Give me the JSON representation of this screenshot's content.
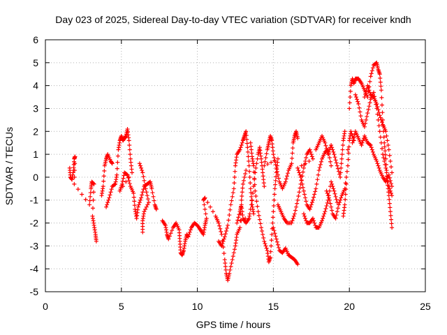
{
  "chart_data": {
    "type": "scatter",
    "title": "Day 023 of 2025, Sidereal Day-to-day VTEC variation (SDTVAR) for receiver kndh",
    "xlabel": "GPS time / hours",
    "ylabel": "SDTVAR / TECUs",
    "xlim": [
      0,
      25
    ],
    "ylim": [
      -5,
      6
    ],
    "x_ticks": [
      "0",
      "5",
      "10",
      "15",
      "20",
      "25"
    ],
    "y_ticks": [
      "-5",
      "-4",
      "-3",
      "-2",
      "-1",
      "0",
      "1",
      "2",
      "3",
      "4",
      "5",
      "6"
    ],
    "grid": true,
    "marker": "+",
    "series_color": "#ff0000",
    "series": [
      {
        "name": "SDTVAR",
        "trace": [
          [
            1.6,
            0.4
          ],
          [
            1.65,
            0.0
          ],
          [
            1.75,
            -0.1
          ],
          [
            1.85,
            0.3
          ],
          [
            1.9,
            0.8
          ],
          [
            1.95,
            0.9
          ],
          [
            1.9,
            -0.3
          ],
          [
            2.9,
            -1.2
          ],
          [
            3.0,
            -0.5
          ],
          [
            3.05,
            -0.2
          ],
          [
            3.2,
            -0.3
          ],
          [
            3.1,
            -1.7
          ],
          [
            3.2,
            -2.1
          ],
          [
            3.3,
            -2.5
          ],
          [
            3.35,
            -2.8
          ],
          [
            3.7,
            -0.8
          ],
          [
            3.8,
            -0.4
          ],
          [
            3.9,
            0.5
          ],
          [
            4.0,
            0.8
          ],
          [
            4.1,
            1.0
          ],
          [
            4.3,
            0.7
          ],
          [
            4.4,
            0.6
          ],
          [
            4.0,
            -1.3
          ],
          [
            4.2,
            -0.9
          ],
          [
            4.4,
            -0.4
          ],
          [
            4.6,
            -0.3
          ],
          [
            4.7,
            0.1
          ],
          [
            4.8,
            1.2
          ],
          [
            4.9,
            1.6
          ],
          [
            5.0,
            1.8
          ],
          [
            5.1,
            1.6
          ],
          [
            5.2,
            1.7
          ],
          [
            5.3,
            1.8
          ],
          [
            5.4,
            2.1
          ],
          [
            5.5,
            1.6
          ],
          [
            5.6,
            0.8
          ],
          [
            5.7,
            0.2
          ],
          [
            4.9,
            -0.6
          ],
          [
            5.05,
            -0.3
          ],
          [
            5.2,
            0.2
          ],
          [
            5.4,
            0.1
          ],
          [
            5.6,
            -0.4
          ],
          [
            5.8,
            -0.7
          ],
          [
            5.9,
            -1.4
          ],
          [
            6.0,
            -1.8
          ],
          [
            6.1,
            -1.3
          ],
          [
            6.3,
            -0.9
          ],
          [
            6.5,
            -0.4
          ],
          [
            6.7,
            -0.3
          ],
          [
            6.9,
            -0.2
          ],
          [
            7.0,
            -0.5
          ],
          [
            7.2,
            -1.2
          ],
          [
            7.3,
            -1.4
          ],
          [
            6.2,
            0.6
          ],
          [
            6.4,
            0.2
          ],
          [
            6.6,
            -0.5
          ],
          [
            6.8,
            -1.1
          ],
          [
            6.5,
            -1.5
          ],
          [
            6.4,
            -1.9
          ],
          [
            6.4,
            -2.4
          ],
          [
            7.7,
            -1.9
          ],
          [
            7.9,
            -2.1
          ],
          [
            8.0,
            -2.5
          ],
          [
            8.1,
            -2.7
          ],
          [
            8.4,
            -2.2
          ],
          [
            8.6,
            -2.0
          ],
          [
            8.8,
            -2.3
          ],
          [
            8.85,
            -2.8
          ],
          [
            8.9,
            -3.3
          ],
          [
            9.0,
            -3.4
          ],
          [
            9.1,
            -3.2
          ],
          [
            9.2,
            -2.8
          ],
          [
            9.3,
            -2.5
          ],
          [
            9.4,
            -2.6
          ],
          [
            9.6,
            -2.2
          ],
          [
            9.8,
            -2.0
          ],
          [
            10.0,
            -2.1
          ],
          [
            10.2,
            -2.3
          ],
          [
            10.4,
            -2.5
          ],
          [
            10.5,
            -2.1
          ],
          [
            10.6,
            -1.8
          ],
          [
            10.4,
            -1.0
          ],
          [
            10.5,
            -0.9
          ],
          [
            11.2,
            -1.7
          ],
          [
            11.4,
            -2.0
          ],
          [
            11.6,
            -2.5
          ],
          [
            11.8,
            -3.6
          ],
          [
            11.9,
            -4.2
          ],
          [
            12.0,
            -4.5
          ],
          [
            12.1,
            -4.2
          ],
          [
            12.3,
            -3.6
          ],
          [
            12.5,
            -3.0
          ],
          [
            12.6,
            -2.5
          ],
          [
            12.8,
            -2.2
          ],
          [
            12.9,
            -1.0
          ],
          [
            13.0,
            -0.3
          ],
          [
            13.2,
            0.3
          ],
          [
            11.4,
            -2.8
          ],
          [
            11.6,
            -3.0
          ],
          [
            11.8,
            -2.6
          ],
          [
            12.0,
            -2.1
          ],
          [
            12.2,
            -1.2
          ],
          [
            12.4,
            -0.5
          ],
          [
            12.5,
            0.5
          ],
          [
            12.6,
            1.0
          ],
          [
            12.8,
            1.2
          ],
          [
            13.0,
            1.6
          ],
          [
            13.1,
            1.8
          ],
          [
            13.2,
            2.0
          ],
          [
            13.3,
            1.3
          ],
          [
            13.4,
            0.5
          ],
          [
            13.5,
            -0.5
          ],
          [
            13.6,
            -1.2
          ],
          [
            13.7,
            -1.6
          ],
          [
            12.6,
            -2.0
          ],
          [
            12.8,
            -1.5
          ],
          [
            12.9,
            -1.2
          ],
          [
            13.0,
            -1.8
          ],
          [
            13.2,
            -2.0
          ],
          [
            13.4,
            -1.8
          ],
          [
            13.6,
            -1.0
          ],
          [
            13.8,
            0.2
          ],
          [
            14.0,
            1.0
          ],
          [
            14.1,
            1.3
          ],
          [
            14.2,
            0.8
          ],
          [
            14.3,
            0.2
          ],
          [
            14.4,
            -0.4
          ],
          [
            13.5,
            1.5
          ],
          [
            13.6,
            0.9
          ],
          [
            13.7,
            0.5
          ],
          [
            13.8,
            -0.6
          ],
          [
            14.0,
            -1.5
          ],
          [
            14.2,
            -2.2
          ],
          [
            14.4,
            -2.8
          ],
          [
            14.6,
            -3.2
          ],
          [
            14.7,
            -3.7
          ],
          [
            14.8,
            -3.5
          ],
          [
            14.9,
            -2.5
          ],
          [
            15.0,
            -1.5
          ],
          [
            15.1,
            -0.5
          ],
          [
            15.2,
            0.2
          ],
          [
            15.3,
            0.8
          ],
          [
            14.4,
            0.5
          ],
          [
            14.6,
            1.2
          ],
          [
            14.7,
            1.5
          ],
          [
            14.8,
            1.8
          ],
          [
            14.9,
            1.6
          ],
          [
            15.0,
            1.0
          ],
          [
            15.2,
            0.4
          ],
          [
            15.4,
            -0.2
          ],
          [
            15.6,
            -0.5
          ],
          [
            15.8,
            -0.2
          ],
          [
            16.0,
            0.3
          ],
          [
            16.2,
            0.6
          ],
          [
            16.3,
            1.5
          ],
          [
            16.4,
            1.8
          ],
          [
            16.5,
            2.0
          ],
          [
            16.6,
            1.7
          ],
          [
            15.0,
            -2.2
          ],
          [
            15.2,
            -2.7
          ],
          [
            15.4,
            -3.2
          ],
          [
            15.6,
            -3.3
          ],
          [
            15.8,
            -3.1
          ],
          [
            16.0,
            -3.4
          ],
          [
            16.2,
            -3.5
          ],
          [
            16.4,
            -3.6
          ],
          [
            16.6,
            -3.8
          ],
          [
            15.3,
            -1.2
          ],
          [
            15.5,
            -1.5
          ],
          [
            15.7,
            -1.8
          ],
          [
            15.9,
            -2.0
          ],
          [
            16.2,
            -2.0
          ],
          [
            16.4,
            -1.6
          ],
          [
            16.6,
            -1.0
          ],
          [
            16.8,
            -0.3
          ],
          [
            17.0,
            0.4
          ],
          [
            17.2,
            1.0
          ],
          [
            17.4,
            1.2
          ],
          [
            17.6,
            0.8
          ],
          [
            16.6,
            0.4
          ],
          [
            16.8,
            0.0
          ],
          [
            17.0,
            -0.6
          ],
          [
            17.2,
            -1.2
          ],
          [
            17.4,
            -1.4
          ],
          [
            17.6,
            -1.0
          ],
          [
            17.8,
            -0.5
          ],
          [
            18.0,
            0.3
          ],
          [
            18.2,
            0.8
          ],
          [
            18.4,
            1.1
          ],
          [
            18.6,
            1.2
          ],
          [
            18.8,
            0.5
          ],
          [
            17.0,
            -1.6
          ],
          [
            17.2,
            -2.0
          ],
          [
            17.4,
            -2.0
          ],
          [
            17.6,
            -1.8
          ],
          [
            17.8,
            -2.2
          ],
          [
            18.0,
            -2.2
          ],
          [
            18.2,
            -1.9
          ],
          [
            18.4,
            -1.5
          ],
          [
            18.6,
            -1.0
          ],
          [
            18.8,
            -0.2
          ],
          [
            19.0,
            -0.6
          ],
          [
            19.2,
            -1.1
          ],
          [
            17.8,
            1.2
          ],
          [
            18.0,
            1.5
          ],
          [
            18.2,
            1.8
          ],
          [
            18.4,
            1.5
          ],
          [
            18.6,
            1.0
          ],
          [
            18.8,
            1.4
          ],
          [
            19.0,
            1.0
          ],
          [
            19.2,
            0.5
          ],
          [
            19.4,
            0.0
          ],
          [
            19.5,
            0.8
          ],
          [
            19.6,
            1.6
          ],
          [
            19.7,
            2.0
          ],
          [
            18.5,
            -0.6
          ],
          [
            18.7,
            -1.0
          ],
          [
            18.9,
            -1.6
          ],
          [
            19.1,
            -1.8
          ],
          [
            19.3,
            -1.2
          ],
          [
            19.5,
            -0.8
          ],
          [
            19.7,
            -0.5
          ],
          [
            19.9,
            0.5
          ],
          [
            20.0,
            1.6
          ],
          [
            20.1,
            2.0
          ],
          [
            20.3,
            1.6
          ],
          [
            19.6,
            -1.7
          ],
          [
            19.7,
            -1.2
          ],
          [
            19.8,
            -0.3
          ],
          [
            19.9,
            1.2
          ],
          [
            20.0,
            3.0
          ],
          [
            20.1,
            4.0
          ],
          [
            20.2,
            4.3
          ],
          [
            20.3,
            4.1
          ],
          [
            20.4,
            4.3
          ],
          [
            20.6,
            4.3
          ],
          [
            20.8,
            4.1
          ],
          [
            21.0,
            3.8
          ],
          [
            21.2,
            3.5
          ],
          [
            21.4,
            4.4
          ],
          [
            21.6,
            4.9
          ],
          [
            21.8,
            5.0
          ],
          [
            21.9,
            4.7
          ],
          [
            22.0,
            4.5
          ],
          [
            22.1,
            3.8
          ],
          [
            22.2,
            2.5
          ],
          [
            22.3,
            1.5
          ],
          [
            22.4,
            0.8
          ],
          [
            22.5,
            -0.2
          ],
          [
            22.6,
            -0.8
          ],
          [
            22.7,
            -1.5
          ],
          [
            22.8,
            -2.2
          ],
          [
            20.4,
            3.6
          ],
          [
            20.6,
            3.2
          ],
          [
            20.8,
            2.5
          ],
          [
            21.0,
            2.2
          ],
          [
            21.2,
            2.8
          ],
          [
            21.4,
            3.4
          ],
          [
            21.6,
            3.7
          ],
          [
            21.8,
            3.0
          ],
          [
            22.0,
            2.0
          ],
          [
            22.2,
            1.0
          ],
          [
            22.4,
            0.4
          ],
          [
            22.6,
            -0.4
          ],
          [
            22.8,
            -0.8
          ],
          [
            20.2,
            1.5
          ],
          [
            20.4,
            2.0
          ],
          [
            20.6,
            1.7
          ],
          [
            20.8,
            1.4
          ],
          [
            21.0,
            1.8
          ],
          [
            21.2,
            1.5
          ],
          [
            21.4,
            1.4
          ],
          [
            21.6,
            1.0
          ],
          [
            21.8,
            0.7
          ],
          [
            22.0,
            0.3
          ],
          [
            22.2,
            0.0
          ],
          [
            22.4,
            -0.2
          ],
          [
            22.6,
            0.1
          ],
          [
            22.8,
            -0.4
          ],
          [
            21.0,
            3.5
          ],
          [
            21.2,
            4.0
          ],
          [
            21.4,
            3.6
          ],
          [
            21.6,
            3.5
          ],
          [
            21.8,
            3.2
          ],
          [
            22.0,
            2.7
          ],
          [
            22.2,
            2.3
          ],
          [
            22.4,
            2.0
          ],
          [
            22.6,
            1.2
          ],
          [
            22.8,
            0.2
          ]
        ]
      }
    ]
  }
}
